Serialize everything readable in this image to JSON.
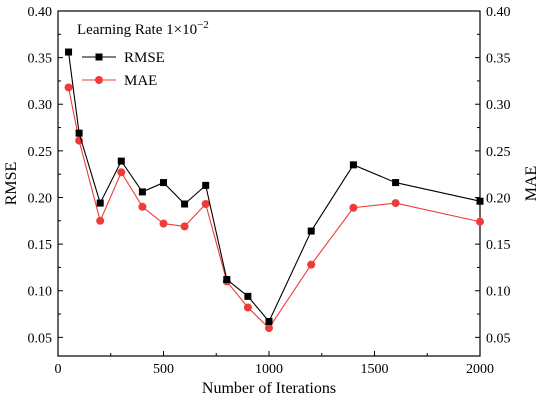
{
  "chart_data": {
    "type": "line",
    "title": "",
    "xlabel": "Number of Iterations",
    "ylabel": "RMSE",
    "ylabel_right": "MAE",
    "xlim": [
      0,
      2000
    ],
    "ylim": [
      0.03,
      0.4
    ],
    "xticks": [
      0,
      500,
      1000,
      1500,
      2000
    ],
    "yticks": [
      0.05,
      0.1,
      0.15,
      0.2,
      0.25,
      0.3,
      0.35,
      0.4
    ],
    "yticks_labels": [
      "0.05",
      "0.10",
      "0.15",
      "0.20",
      "0.25",
      "0.30",
      "0.35",
      "0.40"
    ],
    "grid": false,
    "legend": {
      "placement": "top-left",
      "title": "Learning Rate 1×10",
      "title_superscript": "−2"
    },
    "x": [
      50,
      100,
      200,
      300,
      400,
      500,
      600,
      700,
      800,
      900,
      1000,
      1200,
      1400,
      1600,
      2000
    ],
    "series": [
      {
        "name": "RMSE",
        "color": "#000000",
        "marker": "square",
        "values": [
          0.356,
          0.269,
          0.194,
          0.239,
          0.206,
          0.216,
          0.193,
          0.213,
          0.112,
          0.094,
          0.067,
          0.164,
          0.235,
          0.216,
          0.196
        ]
      },
      {
        "name": "MAE",
        "color": "#ee3b3b",
        "marker": "circle",
        "values": [
          0.318,
          0.261,
          0.175,
          0.227,
          0.19,
          0.172,
          0.169,
          0.193,
          0.11,
          0.082,
          0.06,
          0.128,
          0.189,
          0.194,
          0.174
        ]
      }
    ]
  }
}
